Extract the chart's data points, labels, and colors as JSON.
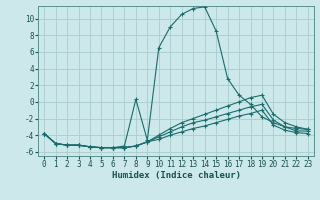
{
  "xlabel": "Humidex (Indice chaleur)",
  "background_color": "#cce8ea",
  "grid_color": "#aacccc",
  "line_color": "#1a6b6b",
  "xlim": [
    -0.5,
    23.5
  ],
  "ylim": [
    -6.5,
    11.5
  ],
  "xticks": [
    0,
    1,
    2,
    3,
    4,
    5,
    6,
    7,
    8,
    9,
    10,
    11,
    12,
    13,
    14,
    15,
    16,
    17,
    18,
    19,
    20,
    21,
    22,
    23
  ],
  "yticks": [
    -6,
    -4,
    -2,
    0,
    2,
    4,
    6,
    8,
    10
  ],
  "series": [
    {
      "x": [
        0,
        1,
        2,
        3,
        4,
        5,
        6,
        7,
        8,
        9,
        10,
        11,
        12,
        13,
        14,
        15,
        16,
        17,
        18,
        19,
        20,
        21,
        22,
        23
      ],
      "y": [
        -3.8,
        -5.0,
        -5.2,
        -5.2,
        -5.4,
        -5.5,
        -5.5,
        -5.3,
        0.3,
        -4.6,
        6.5,
        9.0,
        10.5,
        11.2,
        11.4,
        8.5,
        2.8,
        0.8,
        -0.3,
        -1.8,
        -2.5,
        -3.0,
        -3.2,
        -3.3
      ]
    },
    {
      "x": [
        0,
        1,
        2,
        3,
        4,
        5,
        6,
        7,
        8,
        9,
        10,
        11,
        12,
        13,
        14,
        15,
        16,
        17,
        18,
        19,
        20,
        21,
        22,
        23
      ],
      "y": [
        -3.8,
        -5.0,
        -5.2,
        -5.2,
        -5.4,
        -5.5,
        -5.5,
        -5.5,
        -5.3,
        -4.8,
        -4.0,
        -3.2,
        -2.5,
        -2.0,
        -1.5,
        -1.0,
        -0.5,
        0.0,
        0.5,
        0.8,
        -1.5,
        -2.5,
        -3.0,
        -3.3
      ]
    },
    {
      "x": [
        0,
        1,
        2,
        3,
        4,
        5,
        6,
        7,
        8,
        9,
        10,
        11,
        12,
        13,
        14,
        15,
        16,
        17,
        18,
        19,
        20,
        21,
        22,
        23
      ],
      "y": [
        -3.8,
        -5.0,
        -5.2,
        -5.2,
        -5.4,
        -5.5,
        -5.5,
        -5.5,
        -5.3,
        -4.8,
        -4.2,
        -3.6,
        -3.0,
        -2.5,
        -2.2,
        -1.8,
        -1.4,
        -1.0,
        -0.6,
        -0.3,
        -2.2,
        -3.0,
        -3.5,
        -3.5
      ]
    },
    {
      "x": [
        0,
        1,
        2,
        3,
        4,
        5,
        6,
        7,
        8,
        9,
        10,
        11,
        12,
        13,
        14,
        15,
        16,
        17,
        18,
        19,
        20,
        21,
        22,
        23
      ],
      "y": [
        -3.8,
        -5.0,
        -5.2,
        -5.2,
        -5.4,
        -5.5,
        -5.5,
        -5.5,
        -5.3,
        -4.8,
        -4.5,
        -4.0,
        -3.6,
        -3.2,
        -2.9,
        -2.5,
        -2.1,
        -1.7,
        -1.4,
        -1.0,
        -2.8,
        -3.4,
        -3.7,
        -3.8
      ]
    }
  ]
}
